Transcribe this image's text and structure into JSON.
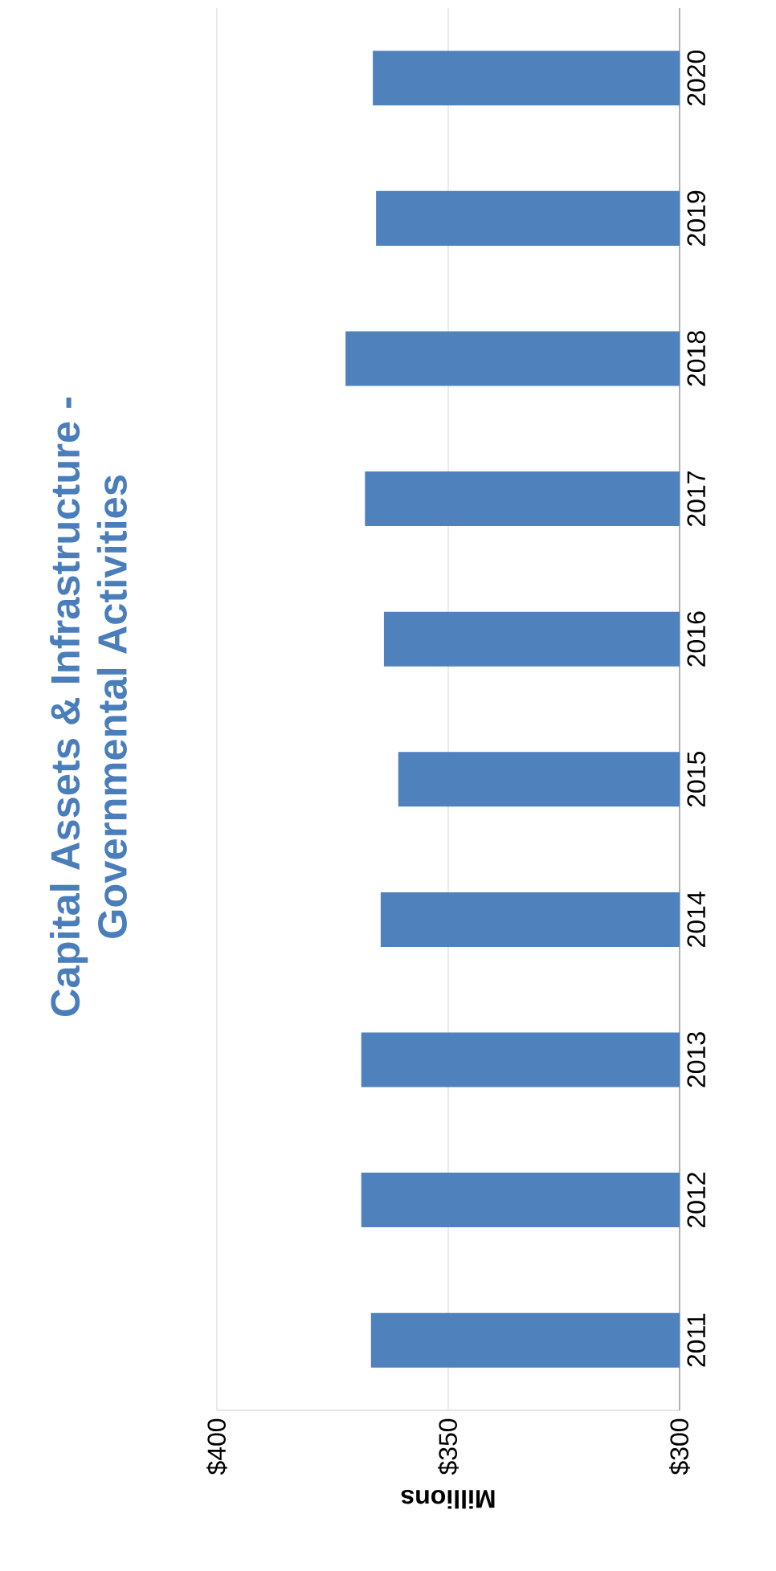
{
  "chart_data": {
    "type": "bar",
    "orientation": "horizontal",
    "title": "Capital Assets & Infrastructure -\nGovernmental Activities",
    "xlabel": "Millions",
    "categories": [
      "2020",
      "2019",
      "2018",
      "2017",
      "2016",
      "2015",
      "2014",
      "2013",
      "2012",
      "2011"
    ],
    "values": [
      366.3,
      365.6,
      372.2,
      368.0,
      363.9,
      360.8,
      364.6,
      368.8,
      368.8,
      366.7
    ],
    "color": "#4f81bd",
    "xlim": [
      400,
      300
    ],
    "xticks": [
      {
        "value": 400,
        "label": "$400"
      },
      {
        "value": 350,
        "label": "$350"
      },
      {
        "value": 300,
        "label": "$300"
      }
    ],
    "grid": "x"
  }
}
